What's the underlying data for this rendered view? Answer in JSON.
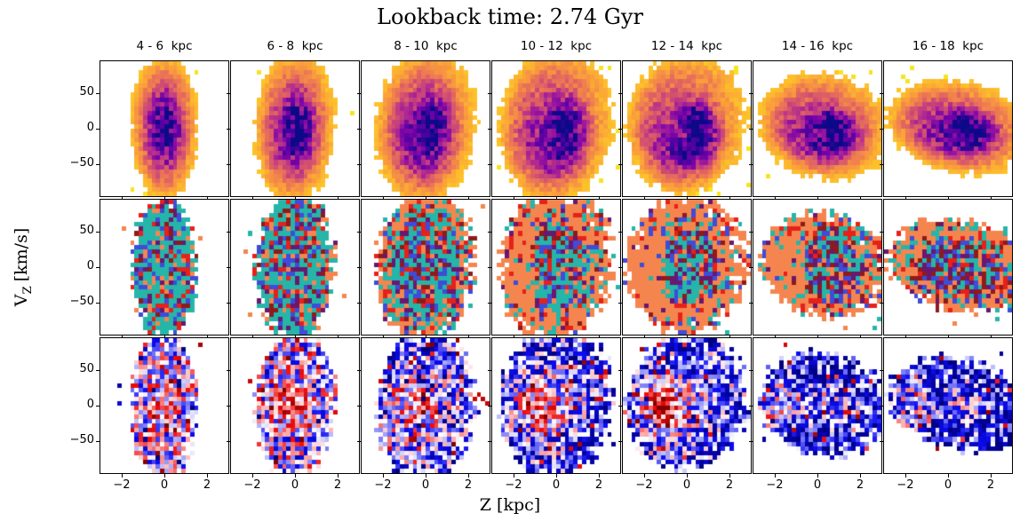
{
  "chart_data": {
    "type": "heatmap",
    "title": "Lookback time: 2.74 Gyr",
    "lookback_time_gyr": 2.74,
    "xlabel": "Z [kpc]",
    "ylabel": "V_Z [km/s]",
    "ylabel_parts": {
      "base": "V",
      "sub": "Z",
      "unit": "[km/s]"
    },
    "xlim": [
      -3,
      3
    ],
    "ylim": [
      -95,
      95
    ],
    "xticks": [
      -2,
      0,
      2
    ],
    "xtick_labels": [
      "−2",
      "0",
      "2"
    ],
    "yticks": [
      50,
      0,
      -50
    ],
    "ytick_labels": [
      "50",
      "0",
      "−50"
    ],
    "grid": {
      "rows": 3,
      "cols": 7,
      "bins_x": 30,
      "bins_y": 30
    },
    "seed": 7,
    "columns": [
      {
        "label": "4 - 6  kpc",
        "gen": {
          "sx": 0.2,
          "sy": 0.42,
          "tilt": 0,
          "spiral": 0.0,
          "cz": 0,
          "r2": {
            "tealR": 2.6,
            "ring": 0.0,
            "dark": 0.05,
            "patch": 0
          },
          "r3": {
            "base": -0.02,
            "blob": 0.0,
            "blobZ": -0.4,
            "white": 0.35
          }
        }
      },
      {
        "label": "6 - 8  kpc",
        "gen": {
          "sx": 0.24,
          "sy": 0.43,
          "tilt": -3,
          "spiral": 0.1,
          "cz": 0,
          "r2": {
            "tealR": 2.3,
            "ring": 0.1,
            "dark": 0.08,
            "patch": 0
          },
          "r3": {
            "base": -0.1,
            "blob": 0.15,
            "blobZ": -0.4,
            "white": 0.4
          }
        }
      },
      {
        "label": "8 - 10  kpc",
        "gen": {
          "sx": 0.3,
          "sy": 0.44,
          "tilt": -5,
          "spiral": 0.18,
          "cz": 0,
          "r2": {
            "tealR": 1.8,
            "ring": 0.35,
            "dark": 0.1,
            "patch": 0
          },
          "r3": {
            "base": -0.3,
            "blob": 0.3,
            "blobZ": -0.45,
            "white": 0.45
          }
        }
      },
      {
        "label": "10 - 12  kpc",
        "gen": {
          "sx": 0.34,
          "sy": 0.44,
          "tilt": -7,
          "spiral": 0.28,
          "cz": 0,
          "r2": {
            "tealR": 1.45,
            "ring": 0.85,
            "dark": 0.1,
            "patch": 1
          },
          "r3": {
            "base": -0.4,
            "blob": 0.55,
            "blobZ": -0.45,
            "white": 0.5
          }
        }
      },
      {
        "label": "12 - 14  kpc",
        "gen": {
          "sx": 0.36,
          "sy": 0.4,
          "tilt": -10,
          "spiral": 0.4,
          "cz": 0,
          "r2": {
            "tealR": 1.35,
            "ring": 0.9,
            "dark": 0.12,
            "patch": 1
          },
          "r3": {
            "base": -0.45,
            "blob": 0.95,
            "blobZ": -0.42,
            "white": 0.45
          }
        }
      },
      {
        "label": "14 - 16  kpc",
        "gen": {
          "sx": 0.4,
          "sy": 0.3,
          "tilt": -11,
          "spiral": 0.3,
          "cz": 0.12,
          "r2": {
            "tealR": 1.5,
            "ring": 0.7,
            "dark": 0.25,
            "patch": 1
          },
          "r3": {
            "base": -0.52,
            "blob": 0.6,
            "blobZ": -0.7,
            "white": 0.3
          }
        }
      },
      {
        "label": "16 - 18  kpc",
        "gen": {
          "sx": 0.44,
          "sy": 0.26,
          "tilt": -11,
          "spiral": 0.22,
          "cz": 0.18,
          "r2": {
            "tealR": 1.5,
            "ring": 0.55,
            "dark": 0.3,
            "patch": 0
          },
          "r3": {
            "base": -0.52,
            "blob": 0.4,
            "blobZ": -0.8,
            "white": 0.3
          }
        }
      }
    ],
    "rows": [
      {
        "name": "density-histogram",
        "colormap": "plasma_r",
        "palette": [
          "#F0F921",
          "#FDC926",
          "#FA9E3B",
          "#ED7953",
          "#D8576B",
          "#BD3786",
          "#9C179E",
          "#7201A8",
          "#46039F",
          "#0D0887"
        ]
      },
      {
        "name": "categorical-histogram",
        "colormap": "discrete",
        "palette": {
          "teal": "#26B5A9",
          "orange": "#F5854F",
          "red": "#E62119",
          "blue": "#3E4CD8",
          "purple": "#69186F",
          "maroon": "#8E1B1B"
        }
      },
      {
        "name": "diverging-histogram",
        "colormap": "seismic",
        "stops": [
          [
            -1,
            "#00007F"
          ],
          [
            -0.5,
            "#0B0BF0"
          ],
          [
            0,
            "#FFFFFF"
          ],
          [
            0.5,
            "#F00B0B"
          ],
          [
            1,
            "#7F0000"
          ]
        ]
      }
    ]
  }
}
